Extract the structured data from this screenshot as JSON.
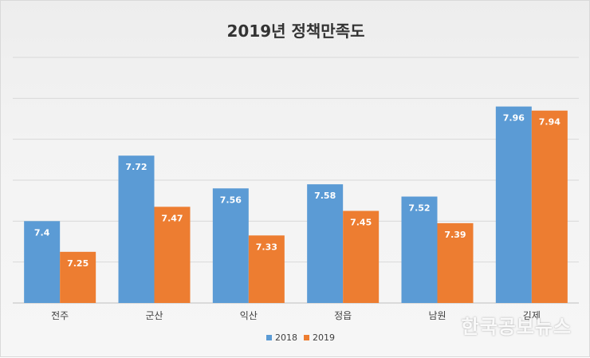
{
  "chart_data": {
    "type": "bar",
    "title": "2019년 정책만족도",
    "categories": [
      "전주",
      "군산",
      "익산",
      "정읍",
      "남원",
      "김제"
    ],
    "series": [
      {
        "name": "2018",
        "values": [
          7.4,
          7.72,
          7.56,
          7.58,
          7.52,
          7.96
        ],
        "color": "#5b9bd5"
      },
      {
        "name": "2019",
        "values": [
          7.25,
          7.47,
          7.33,
          7.45,
          7.39,
          7.94
        ],
        "color": "#ed7d31"
      }
    ],
    "ylim": [
      7.0,
      8.2
    ],
    "grid": true,
    "legend_position": "bottom"
  },
  "watermark": "한국공보뉴스"
}
